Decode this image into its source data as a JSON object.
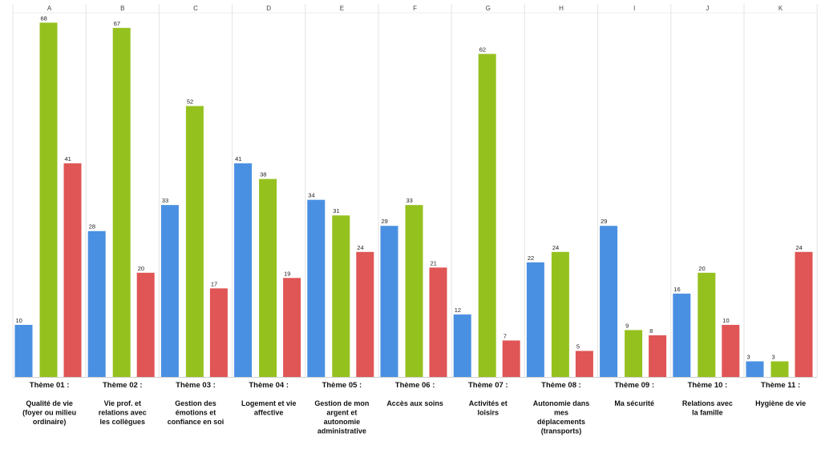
{
  "chart_data": {
    "type": "bar",
    "title": "",
    "xlabel": "",
    "ylabel": "",
    "ylim": [
      0,
      70
    ],
    "grid": "vertical column separators",
    "legend": "none",
    "column_letters": [
      "A",
      "B",
      "C",
      "D",
      "E",
      "F",
      "G",
      "H",
      "I",
      "J",
      "K"
    ],
    "categories": [
      {
        "title": "Thème 01 :",
        "lines": [
          "Qualité de vie",
          "(foyer ou milieu",
          "ordinaire)"
        ]
      },
      {
        "title": "Thème 02 :",
        "lines": [
          "Vie prof. et",
          "relations avec",
          "les collègues"
        ]
      },
      {
        "title": "Thème 03 :",
        "lines": [
          "Gestion des",
          "émotions et",
          "confiance en soi"
        ]
      },
      {
        "title": "Thème 04 :",
        "lines": [
          "Logement et vie",
          "affective"
        ]
      },
      {
        "title": "Thème 05 :",
        "lines": [
          "Gestion de mon",
          "argent et",
          "autonomie",
          "administrative"
        ]
      },
      {
        "title": "Thème 06 :",
        "lines": [
          "Accès aux soins"
        ]
      },
      {
        "title": "Thème 07 :",
        "lines": [
          "Activités et",
          "loisirs"
        ]
      },
      {
        "title": "Thème 08 :",
        "lines": [
          "Autonomie dans",
          "mes",
          "déplacements",
          "(transports)"
        ]
      },
      {
        "title": "Thème 09 :",
        "lines": [
          "Ma sécurité"
        ]
      },
      {
        "title": "Thème 10 :",
        "lines": [
          "Relations avec",
          "la famille"
        ]
      },
      {
        "title": "Thème 11 :",
        "lines": [
          "Hygiène de vie"
        ]
      }
    ],
    "series": [
      {
        "name": "blue",
        "color": "#4a90e2",
        "values": [
          10,
          28,
          33,
          41,
          34,
          29,
          12,
          22,
          29,
          16,
          3
        ]
      },
      {
        "name": "green",
        "color": "#95c11f",
        "values": [
          68,
          67,
          52,
          38,
          31,
          33,
          62,
          24,
          9,
          20,
          3
        ]
      },
      {
        "name": "red",
        "color": "#e05555",
        "values": [
          41,
          20,
          17,
          19,
          24,
          21,
          7,
          5,
          8,
          10,
          24
        ]
      }
    ]
  }
}
